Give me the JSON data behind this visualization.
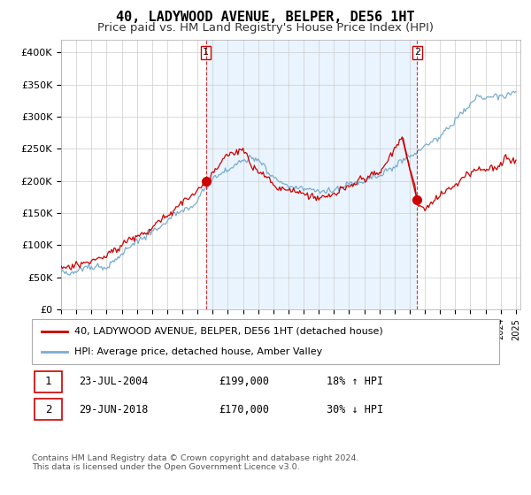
{
  "title": "40, LADYWOOD AVENUE, BELPER, DE56 1HT",
  "subtitle": "Price paid vs. HM Land Registry's House Price Index (HPI)",
  "ylim": [
    0,
    420000
  ],
  "yticks": [
    0,
    50000,
    100000,
    150000,
    200000,
    250000,
    300000,
    350000,
    400000
  ],
  "ytick_labels": [
    "£0",
    "£50K",
    "£100K",
    "£150K",
    "£200K",
    "£250K",
    "£300K",
    "£350K",
    "£400K"
  ],
  "sale1_date": "23-JUL-2004",
  "sale1_price": 199000,
  "sale1_pct": "18% ↑ HPI",
  "sale1_x": 2004.55,
  "sale2_date": "29-JUN-2018",
  "sale2_price": 170000,
  "sale2_pct": "30% ↓ HPI",
  "sale2_x": 2018.49,
  "red_color": "#cc0000",
  "blue_color": "#7aadcf",
  "shade_color": "#ddeeff",
  "legend_label_red": "40, LADYWOOD AVENUE, BELPER, DE56 1HT (detached house)",
  "legend_label_blue": "HPI: Average price, detached house, Amber Valley",
  "footer": "Contains HM Land Registry data © Crown copyright and database right 2024.\nThis data is licensed under the Open Government Licence v3.0.",
  "grid_color": "#cccccc",
  "title_fontsize": 11,
  "subtitle_fontsize": 9.5
}
